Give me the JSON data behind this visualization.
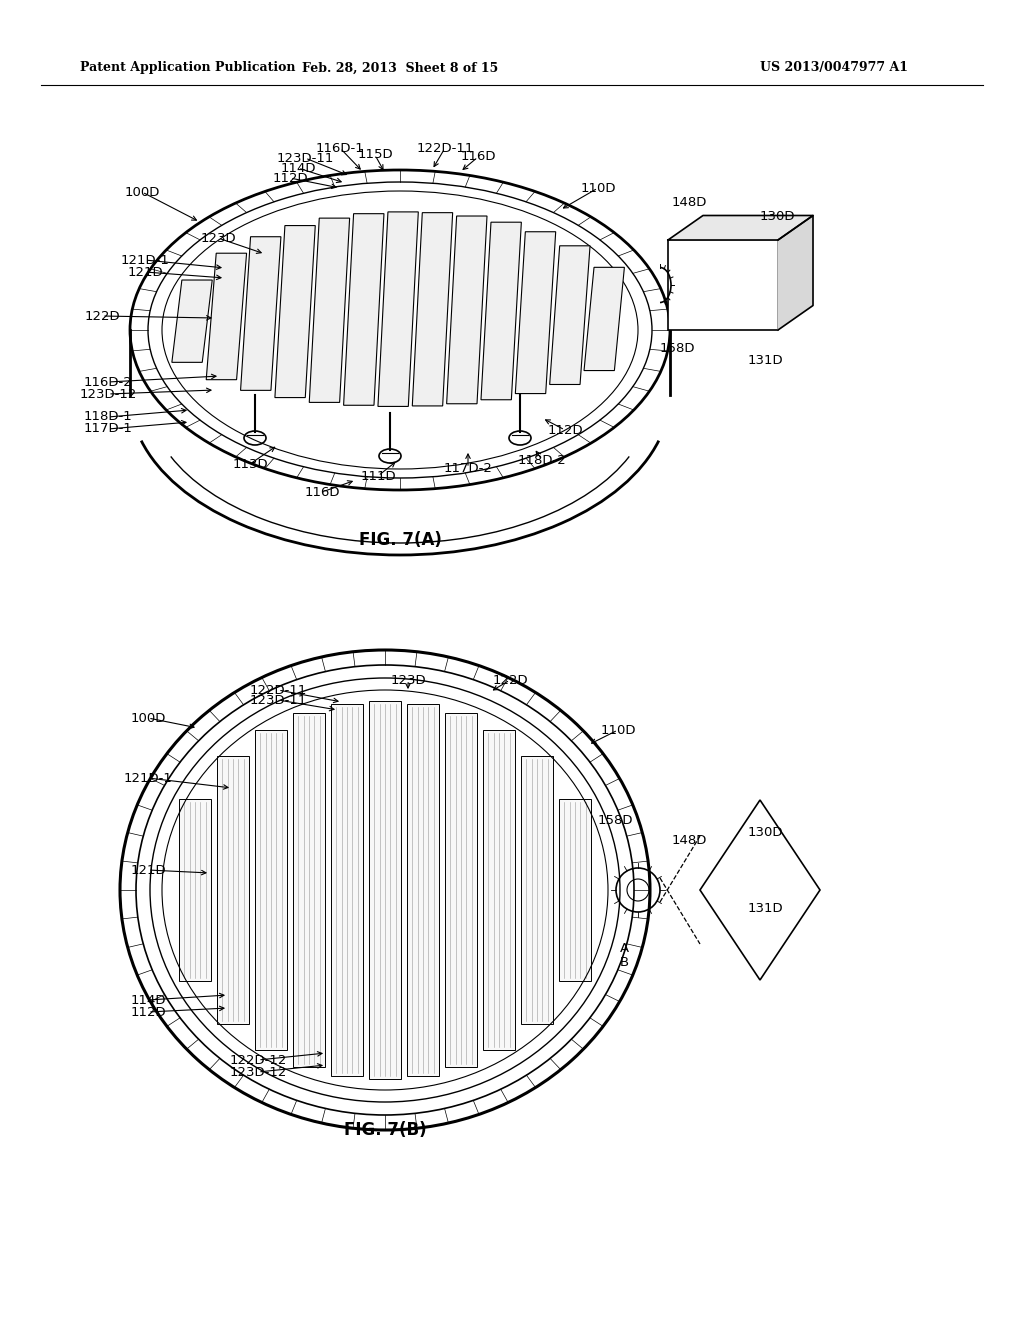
{
  "bg_color": "#ffffff",
  "line_color": "#000000",
  "header_left": "Patent Application Publication",
  "header_mid": "Feb. 28, 2013  Sheet 8 of 15",
  "header_right": "US 2013/0047977 A1",
  "fig7a_caption": "FIG. 7(A)",
  "fig7b_caption": "FIG. 7(B)",
  "fig_width": 10.24,
  "fig_height": 13.2,
  "fig_dpi": 100
}
